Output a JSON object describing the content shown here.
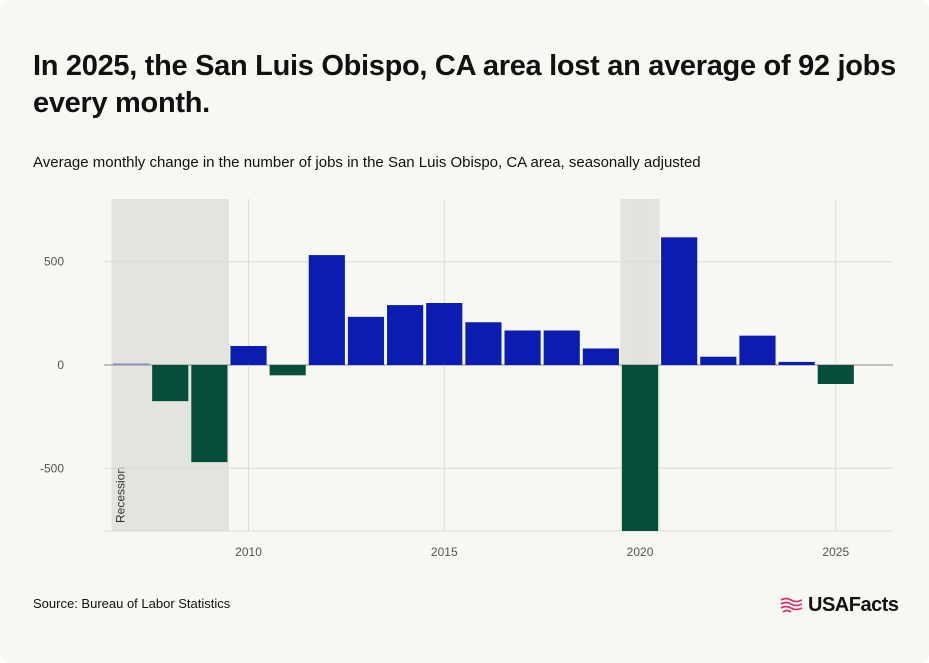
{
  "title": "In 2025, the San Luis Obispo, CA area lost an average of 92 jobs every month.",
  "subtitle": "Average monthly change in the number of jobs in the San Luis Obispo, CA area, seasonally adjusted",
  "source": "Source: Bureau of Labor Statistics",
  "logo": {
    "text": "USAFacts",
    "icon": "usafacts-flag-icon"
  },
  "colors": {
    "positive": "#0a1db0",
    "negative": "#064e3b",
    "recession": "#e4e4df",
    "grid": "#dcdcd6",
    "axis": "#555555"
  },
  "chart_data": {
    "type": "bar",
    "title": "In 2025, the San Luis Obispo, CA area lost an average of 92 jobs every month.",
    "subtitle": "Average monthly change in the number of jobs in the San Luis Obispo, CA area, seasonally adjusted",
    "x": [
      2007,
      2008,
      2009,
      2010,
      2011,
      2012,
      2013,
      2014,
      2015,
      2016,
      2017,
      2018,
      2019,
      2020,
      2021,
      2022,
      2023,
      2024,
      2025
    ],
    "values": [
      8,
      -175,
      -470,
      92,
      -50,
      532,
      233,
      290,
      300,
      207,
      167,
      167,
      80,
      -820,
      618,
      40,
      142,
      15,
      -92
    ],
    "ylim": [
      -800,
      800
    ],
    "yticks": [
      500,
      0,
      -500
    ],
    "ytick_labels": [
      "500",
      "0",
      "-500"
    ],
    "xticks": [
      2010,
      2015,
      2020,
      2025
    ],
    "xtick_labels": [
      "2010",
      "2015",
      "2020",
      "2025"
    ],
    "recessions": [
      {
        "start": 2006.5,
        "end": 2009.5,
        "label": "Recession"
      },
      {
        "start": 2019.5,
        "end": 2020.5,
        "label": ""
      }
    ],
    "grid": true,
    "legend": "none"
  }
}
